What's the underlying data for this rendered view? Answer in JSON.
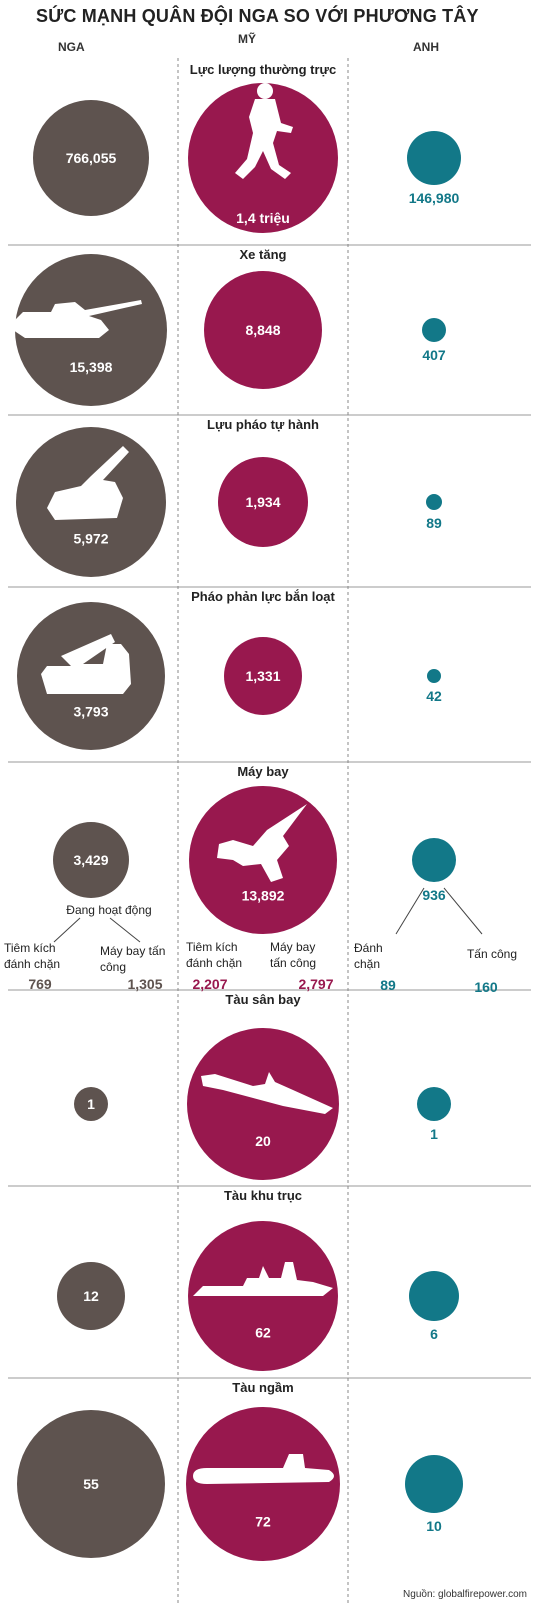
{
  "title": "SỨC MẠNH QUÂN ĐỘI NGA SO VỚI PHƯƠNG TÂY",
  "columns": {
    "russia": "NGA",
    "usa": "MỸ",
    "uk": "ANH"
  },
  "colors": {
    "russia": "#5e534f",
    "usa": "#98184e",
    "uk": "#127888",
    "text_us": "#98184e"
  },
  "source": "Nguồn: globalfirepower.com",
  "chart_data": {
    "type": "bubble-comparison",
    "series": [
      {
        "name": "NGA",
        "color": "#5e534f"
      },
      {
        "name": "MỸ",
        "color": "#98184e"
      },
      {
        "name": "ANH",
        "color": "#127888"
      }
    ],
    "categories": [
      {
        "label": "Lực lượng thường trực",
        "icon": "soldier-icon",
        "russia": {
          "value": 766055,
          "label": "766,055"
        },
        "usa": {
          "value": 1400000,
          "label": "1,4 triệu"
        },
        "uk": {
          "value": 146980,
          "label": "146,980"
        }
      },
      {
        "label": "Xe tăng",
        "icon": "tank-icon",
        "russia": {
          "value": 15398,
          "label": "15,398"
        },
        "usa": {
          "value": 8848,
          "label": "8,848"
        },
        "uk": {
          "value": 407,
          "label": "407"
        }
      },
      {
        "label": "Lựu pháo tự hành",
        "icon": "howitzer-icon",
        "russia": {
          "value": 5972,
          "label": "5,972"
        },
        "usa": {
          "value": 1934,
          "label": "1,934"
        },
        "uk": {
          "value": 89,
          "label": "89"
        }
      },
      {
        "label": "Pháo phản lực bắn loạt",
        "icon": "rocket-launcher-icon",
        "russia": {
          "value": 3793,
          "label": "3,793"
        },
        "usa": {
          "value": 1331,
          "label": "1,331"
        },
        "uk": {
          "value": 42,
          "label": "42"
        }
      },
      {
        "label": "Máy bay",
        "icon": "fighter-jet-icon",
        "russia": {
          "value": 3429,
          "label": "3,429",
          "note": "Đang hoạt động",
          "breakdown": [
            {
              "label": "Tiêm kích đánh chặn",
              "value": 769,
              "value_label": "769"
            },
            {
              "label": "Máy bay tấn công",
              "value": 1305,
              "value_label": "1,305"
            }
          ]
        },
        "usa": {
          "value": 13892,
          "label": "13,892",
          "breakdown": [
            {
              "label": "Tiêm kích đánh chặn",
              "value": 2207,
              "value_label": "2,207"
            },
            {
              "label": "Máy bay tấn công",
              "value": 2797,
              "value_label": "2,797"
            }
          ]
        },
        "uk": {
          "value": 936,
          "label": "936",
          "breakdown": [
            {
              "label": "Đánh chặn",
              "value": 89,
              "value_label": "89"
            },
            {
              "label": "Tấn công",
              "value": 160,
              "value_label": "160"
            }
          ]
        }
      },
      {
        "label": "Tàu sân bay",
        "icon": "aircraft-carrier-icon",
        "russia": {
          "value": 1,
          "label": "1"
        },
        "usa": {
          "value": 20,
          "label": "20"
        },
        "uk": {
          "value": 1,
          "label": "1"
        }
      },
      {
        "label": "Tàu khu trục",
        "icon": "destroyer-icon",
        "russia": {
          "value": 12,
          "label": "12"
        },
        "usa": {
          "value": 62,
          "label": "62"
        },
        "uk": {
          "value": 6,
          "label": "6"
        }
      },
      {
        "label": "Tàu ngầm",
        "icon": "submarine-icon",
        "russia": {
          "value": 55,
          "label": "55"
        },
        "usa": {
          "value": 72,
          "label": "72"
        },
        "uk": {
          "value": 10,
          "label": "10"
        }
      }
    ]
  }
}
